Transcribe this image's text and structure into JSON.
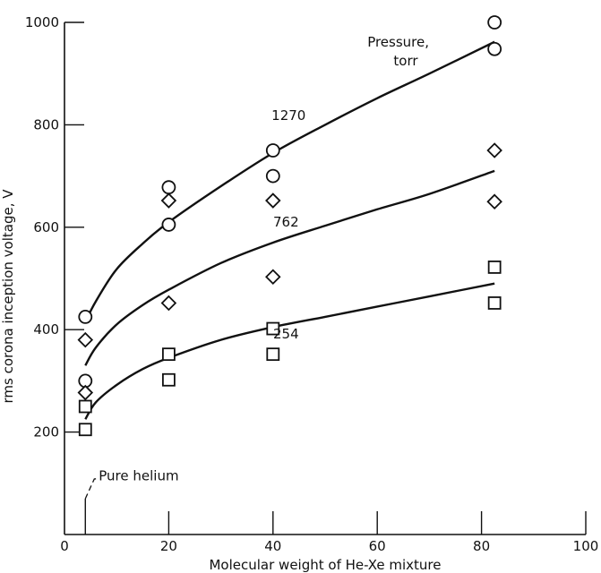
{
  "chart_data": {
    "type": "scatter",
    "title": "",
    "xlabel": "Molecular weight of He-Xe mixture",
    "ylabel": "rms corona inception voltage, V",
    "xlim": [
      0,
      100
    ],
    "ylim": [
      0,
      1000
    ],
    "xticks": [
      0,
      20,
      40,
      60,
      80,
      100
    ],
    "yticks": [
      200,
      400,
      600,
      800,
      1000
    ],
    "grid": false,
    "legend_title": "Pressure, torr",
    "legend_title_lines": [
      "Pressure,",
      "torr"
    ],
    "series": [
      {
        "name": "1270",
        "marker": "circle",
        "points": [
          [
            4,
            425
          ],
          [
            4,
            300
          ],
          [
            20,
            678
          ],
          [
            20,
            605
          ],
          [
            40,
            750
          ],
          [
            40,
            700
          ],
          [
            82.5,
            1000
          ],
          [
            82.5,
            948
          ]
        ],
        "fit": [
          [
            4,
            415
          ],
          [
            6,
            455
          ],
          [
            10,
            518
          ],
          [
            15,
            568
          ],
          [
            20,
            610
          ],
          [
            30,
            680
          ],
          [
            40,
            745
          ],
          [
            50,
            800
          ],
          [
            60,
            852
          ],
          [
            70,
            900
          ],
          [
            82.5,
            962
          ]
        ]
      },
      {
        "name": "762",
        "marker": "diamond",
        "points": [
          [
            4,
            380
          ],
          [
            4,
            277
          ],
          [
            20,
            652
          ],
          [
            20,
            452
          ],
          [
            40,
            652
          ],
          [
            40,
            503
          ],
          [
            82.5,
            750
          ],
          [
            82.5,
            650
          ]
        ],
        "fit": [
          [
            4,
            330
          ],
          [
            6,
            365
          ],
          [
            10,
            410
          ],
          [
            15,
            448
          ],
          [
            20,
            478
          ],
          [
            30,
            530
          ],
          [
            40,
            570
          ],
          [
            50,
            603
          ],
          [
            60,
            635
          ],
          [
            70,
            665
          ],
          [
            82.5,
            710
          ]
        ]
      },
      {
        "name": "254",
        "marker": "square",
        "points": [
          [
            4,
            250
          ],
          [
            4,
            205
          ],
          [
            20,
            352
          ],
          [
            20,
            302
          ],
          [
            40,
            402
          ],
          [
            40,
            352
          ],
          [
            82.5,
            522
          ],
          [
            82.5,
            452
          ]
        ],
        "fit": [
          [
            4,
            225
          ],
          [
            6,
            258
          ],
          [
            10,
            292
          ],
          [
            15,
            323
          ],
          [
            20,
            345
          ],
          [
            30,
            380
          ],
          [
            40,
            405
          ],
          [
            50,
            425
          ],
          [
            60,
            445
          ],
          [
            70,
            465
          ],
          [
            82.5,
            490
          ]
        ]
      }
    ],
    "series_labels": {
      "1270": {
        "x": 43,
        "y": 818
      },
      "762": {
        "x": 42.5,
        "y": 610
      },
      "254": {
        "x": 42.5,
        "y": 392
      }
    },
    "annotations": [
      {
        "text": "Pure helium",
        "x": 4,
        "y_top": 70
      }
    ]
  }
}
